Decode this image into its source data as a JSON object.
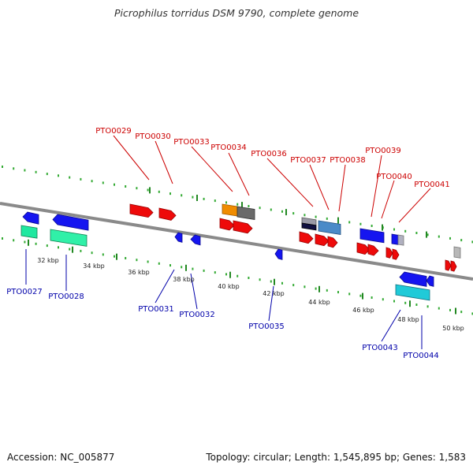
{
  "title": "Picrophilus torridus DSM 9790, complete genome",
  "footer": {
    "accession": "Accession: NC_005877",
    "summary": "Topology: circular; Length: 1,545,895 bp; Genes: 1,583"
  },
  "scale_ticks": [
    "32 kbp",
    "34 kbp",
    "36 kbp",
    "38 kbp",
    "40 kbp",
    "42 kbp",
    "44 kbp",
    "46 kbp",
    "48 kbp",
    "50 kbp"
  ],
  "genes_top": [
    {
      "label": "PTO0029",
      "color": "#e8000b"
    },
    {
      "label": "PTO0030",
      "color": "#e8000b"
    },
    {
      "label": "PTO0033",
      "color": "#e8000b"
    },
    {
      "label": "PTO0034",
      "color": "#e8000b"
    },
    {
      "label": "PTO0036",
      "color": "#e8000b"
    },
    {
      "label": "PTO0037",
      "color": "#e8000b"
    },
    {
      "label": "PTO0038",
      "color": "#e8000b"
    },
    {
      "label": "PTO0039",
      "color": "#e8000b"
    },
    {
      "label": "PTO0040",
      "color": "#e8000b"
    },
    {
      "label": "PTO0041",
      "color": "#e8000b"
    }
  ],
  "genes_bottom": [
    {
      "label": "PTO0027",
      "color": "#0000cc"
    },
    {
      "label": "PTO0028",
      "color": "#0000cc"
    },
    {
      "label": "PTO0031",
      "color": "#0000cc"
    },
    {
      "label": "PTO0032",
      "color": "#0000cc"
    },
    {
      "label": "PTO0035",
      "color": "#0000cc"
    },
    {
      "label": "PTO0043",
      "color": "#0000cc"
    },
    {
      "label": "PTO0044",
      "color": "#0000cc"
    }
  ]
}
